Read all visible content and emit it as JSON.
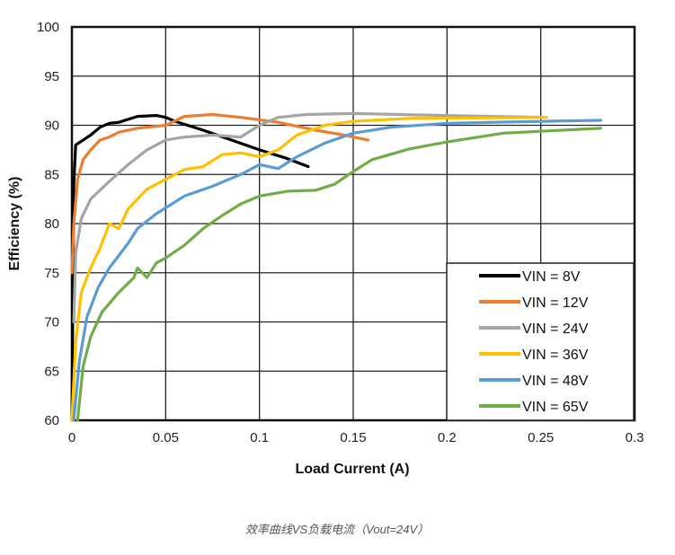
{
  "chart_data": {
    "type": "line",
    "title": "",
    "xlabel": "Load Current (A)",
    "ylabel": "Efficiency (%)",
    "xlim": [
      0,
      0.3
    ],
    "ylim": [
      60,
      100
    ],
    "xticks": [
      "0",
      "0.05",
      "0.1",
      "0.15",
      "0.2",
      "0.25",
      "0.3"
    ],
    "yticks": [
      "60",
      "65",
      "70",
      "75",
      "80",
      "85",
      "90",
      "95",
      "100"
    ],
    "grid": true,
    "legend_position": "bottom-right",
    "caption": "效率曲线VS负载电流（Vout=24V）",
    "series": [
      {
        "name": "VIN = 8V",
        "color": "#000000",
        "points": [
          [
            0,
            60
          ],
          [
            0.001,
            84
          ],
          [
            0.002,
            88
          ],
          [
            0.006,
            88.5
          ],
          [
            0.01,
            89
          ],
          [
            0.015,
            89.8
          ],
          [
            0.02,
            90.2
          ],
          [
            0.025,
            90.3
          ],
          [
            0.03,
            90.6
          ],
          [
            0.035,
            90.9
          ],
          [
            0.045,
            91
          ],
          [
            0.05,
            90.8
          ],
          [
            0.055,
            90.4
          ],
          [
            0.07,
            89.5
          ],
          [
            0.085,
            88.5
          ],
          [
            0.1,
            87.5
          ],
          [
            0.115,
            86.6
          ],
          [
            0.126,
            85.8
          ]
        ]
      },
      {
        "name": "VIN = 12V",
        "color": "#ED7D31",
        "points": [
          [
            0,
            75
          ],
          [
            0.001,
            80
          ],
          [
            0.003,
            84.5
          ],
          [
            0.006,
            86.5
          ],
          [
            0.01,
            87.5
          ],
          [
            0.015,
            88.5
          ],
          [
            0.02,
            88.8
          ],
          [
            0.025,
            89.3
          ],
          [
            0.035,
            89.7
          ],
          [
            0.05,
            90
          ],
          [
            0.06,
            90.9
          ],
          [
            0.075,
            91.1
          ],
          [
            0.09,
            90.8
          ],
          [
            0.11,
            90.3
          ],
          [
            0.13,
            89.5
          ],
          [
            0.145,
            89
          ],
          [
            0.158,
            88.5
          ]
        ]
      },
      {
        "name": "VIN = 24V",
        "color": "#A5A5A5",
        "points": [
          [
            0.001,
            70
          ],
          [
            0.002,
            77
          ],
          [
            0.005,
            80.5
          ],
          [
            0.01,
            82.5
          ],
          [
            0.02,
            84.3
          ],
          [
            0.03,
            86
          ],
          [
            0.04,
            87.5
          ],
          [
            0.05,
            88.5
          ],
          [
            0.06,
            88.8
          ],
          [
            0.075,
            89
          ],
          [
            0.09,
            88.8
          ],
          [
            0.1,
            90
          ],
          [
            0.11,
            90.8
          ],
          [
            0.125,
            91.1
          ],
          [
            0.15,
            91.2
          ],
          [
            0.2,
            91
          ],
          [
            0.252,
            90.8
          ]
        ]
      },
      {
        "name": "VIN = 36V",
        "color": "#FFC000",
        "points": [
          [
            0,
            60
          ],
          [
            0.002,
            68
          ],
          [
            0.005,
            73
          ],
          [
            0.01,
            75.5
          ],
          [
            0.015,
            77.5
          ],
          [
            0.02,
            80
          ],
          [
            0.025,
            79.5
          ],
          [
            0.03,
            81.5
          ],
          [
            0.04,
            83.5
          ],
          [
            0.05,
            84.5
          ],
          [
            0.06,
            85.5
          ],
          [
            0.07,
            85.8
          ],
          [
            0.08,
            87
          ],
          [
            0.09,
            87.2
          ],
          [
            0.1,
            86.8
          ],
          [
            0.11,
            87.5
          ],
          [
            0.12,
            89
          ],
          [
            0.135,
            90
          ],
          [
            0.15,
            90.4
          ],
          [
            0.18,
            90.7
          ],
          [
            0.253,
            90.8
          ]
        ]
      },
      {
        "name": "VIN = 48V",
        "color": "#5B9BD5",
        "points": [
          [
            0.001,
            60
          ],
          [
            0.004,
            66
          ],
          [
            0.008,
            70.5
          ],
          [
            0.014,
            73.5
          ],
          [
            0.02,
            75.5
          ],
          [
            0.03,
            78
          ],
          [
            0.035,
            79.5
          ],
          [
            0.045,
            81
          ],
          [
            0.06,
            82.8
          ],
          [
            0.075,
            83.8
          ],
          [
            0.09,
            85
          ],
          [
            0.1,
            86
          ],
          [
            0.11,
            85.6
          ],
          [
            0.12,
            86.8
          ],
          [
            0.135,
            88.2
          ],
          [
            0.15,
            89.2
          ],
          [
            0.17,
            89.8
          ],
          [
            0.2,
            90.2
          ],
          [
            0.25,
            90.4
          ],
          [
            0.282,
            90.5
          ]
        ]
      },
      {
        "name": "VIN = 65V",
        "color": "#70AD47",
        "points": [
          [
            0.003,
            60
          ],
          [
            0.006,
            65.5
          ],
          [
            0.01,
            68.5
          ],
          [
            0.016,
            71
          ],
          [
            0.025,
            73
          ],
          [
            0.033,
            74.5
          ],
          [
            0.035,
            75.5
          ],
          [
            0.04,
            74.5
          ],
          [
            0.045,
            76
          ],
          [
            0.05,
            76.5
          ],
          [
            0.06,
            77.8
          ],
          [
            0.07,
            79.5
          ],
          [
            0.08,
            80.8
          ],
          [
            0.09,
            82
          ],
          [
            0.1,
            82.8
          ],
          [
            0.115,
            83.3
          ],
          [
            0.13,
            83.4
          ],
          [
            0.14,
            84
          ],
          [
            0.15,
            85.3
          ],
          [
            0.16,
            86.5
          ],
          [
            0.18,
            87.6
          ],
          [
            0.2,
            88.3
          ],
          [
            0.23,
            89.2
          ],
          [
            0.282,
            89.7
          ]
        ]
      }
    ]
  }
}
